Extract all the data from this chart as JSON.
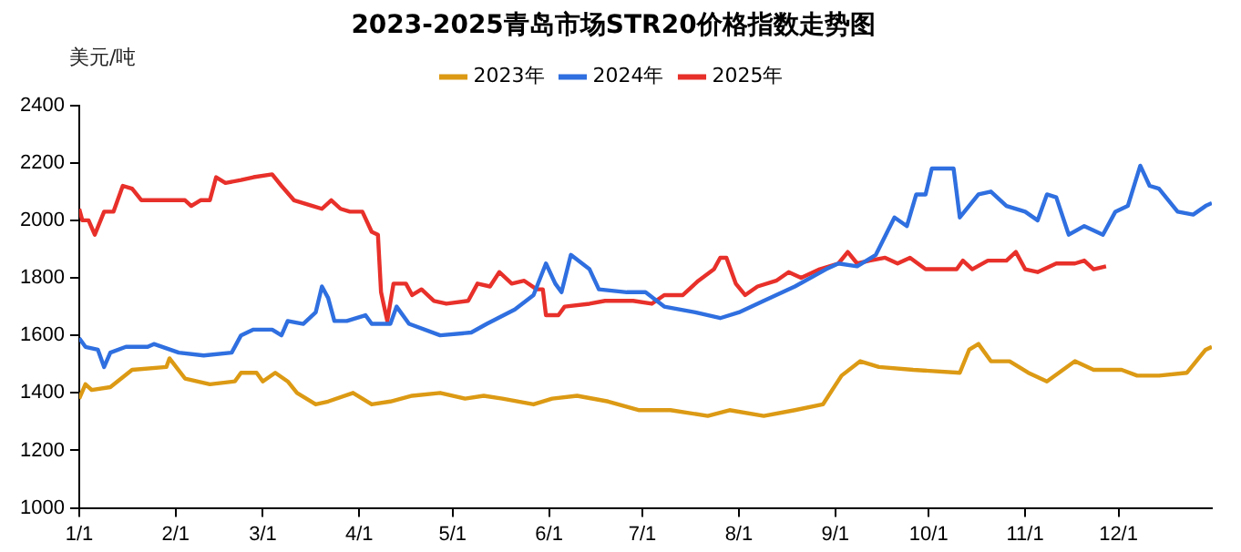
{
  "chart_data": {
    "type": "line",
    "title": "2023-2025青岛市场STR20价格指数走势图",
    "ylabel": "美元/吨",
    "xlim": [
      "--01-01",
      "--12-31"
    ],
    "xticks": [
      {
        "value": "--01-01",
        "label": "1/1"
      },
      {
        "value": "--02-01",
        "label": "2/1"
      },
      {
        "value": "--03-01",
        "label": "3/1"
      },
      {
        "value": "--04-01",
        "label": "4/1"
      },
      {
        "value": "--05-01",
        "label": "5/1"
      },
      {
        "value": "--06-01",
        "label": "6/1"
      },
      {
        "value": "--07-01",
        "label": "7/1"
      },
      {
        "value": "--08-01",
        "label": "8/1"
      },
      {
        "value": "--09-01",
        "label": "9/1"
      },
      {
        "value": "--10-01",
        "label": "10/1"
      },
      {
        "value": "--11-01",
        "label": "11/1"
      },
      {
        "value": "--12-01",
        "label": "12/1"
      }
    ],
    "ylim": [
      1000,
      2400
    ],
    "yticks": [
      1000,
      1200,
      1400,
      1600,
      1800,
      2000,
      2200,
      2400
    ],
    "grid": false,
    "legend": "top",
    "marker": "none",
    "line_style": "solid",
    "series": [
      {
        "name": "2023年",
        "color": "#dc9a14",
        "x": [
          "--01-01",
          "--01-03",
          "--01-05",
          "--01-11",
          "--01-18",
          "--01-29",
          "--01-30",
          "--02-04",
          "--02-12",
          "--02-20",
          "--02-22",
          "--02-27",
          "--03-01",
          "--03-05",
          "--03-09",
          "--03-12",
          "--03-18",
          "--03-22",
          "--03-30",
          "--04-05",
          "--04-11",
          "--04-18",
          "--04-27",
          "--05-05",
          "--05-11",
          "--05-17",
          "--05-27",
          "--06-02",
          "--06-10",
          "--06-20",
          "--06-30",
          "--07-10",
          "--07-22",
          "--07-29",
          "--08-09",
          "--08-19",
          "--08-28",
          "--08-31",
          "--09-03",
          "--09-09",
          "--09-15",
          "--09-26",
          "--10-11",
          "--10-14",
          "--10-17",
          "--10-21",
          "--10-27",
          "--11-02",
          "--11-08",
          "--11-17",
          "--11-23",
          "--12-02",
          "--12-07",
          "--12-14",
          "--12-23",
          "--12-29",
          "--12-31"
        ],
        "values": [
          1380,
          1430,
          1410,
          1420,
          1480,
          1490,
          1520,
          1450,
          1430,
          1440,
          1470,
          1470,
          1440,
          1470,
          1440,
          1400,
          1360,
          1370,
          1400,
          1360,
          1370,
          1390,
          1400,
          1380,
          1390,
          1380,
          1360,
          1380,
          1390,
          1370,
          1340,
          1340,
          1320,
          1340,
          1320,
          1340,
          1360,
          1410,
          1460,
          1510,
          1490,
          1480,
          1470,
          1550,
          1570,
          1510,
          1510,
          1470,
          1440,
          1510,
          1480,
          1480,
          1460,
          1460,
          1470,
          1550,
          1560
        ]
      },
      {
        "name": "2024年",
        "color": "#2f6fe0",
        "x": [
          "--01-01",
          "--01-03",
          "--01-07",
          "--01-09",
          "--01-11",
          "--01-16",
          "--01-23",
          "--01-25",
          "--02-02",
          "--02-10",
          "--02-19",
          "--02-22",
          "--02-26",
          "--03-04",
          "--03-07",
          "--03-09",
          "--03-14",
          "--03-18",
          "--03-20",
          "--03-22",
          "--03-24",
          "--03-28",
          "--04-03",
          "--04-05",
          "--04-11",
          "--04-13",
          "--04-17",
          "--04-27",
          "--05-07",
          "--05-12",
          "--05-21",
          "--05-27",
          "--05-31",
          "--06-03",
          "--06-05",
          "--06-08",
          "--06-14",
          "--06-17",
          "--06-26",
          "--07-02",
          "--07-08",
          "--07-18",
          "--07-26",
          "--08-01",
          "--08-09",
          "--08-19",
          "--08-29",
          "--09-02",
          "--09-08",
          "--09-14",
          "--09-20",
          "--09-24",
          "--09-27",
          "--09-30",
          "--10-02",
          "--10-09",
          "--10-11",
          "--10-17",
          "--10-21",
          "--10-26",
          "--11-01",
          "--11-05",
          "--11-08",
          "--11-11",
          "--11-15",
          "--11-20",
          "--11-26",
          "--11-30",
          "--12-04",
          "--12-08",
          "--12-11",
          "--12-14",
          "--12-20",
          "--12-25",
          "--12-29",
          "--12-31"
        ],
        "values": [
          1590,
          1560,
          1550,
          1490,
          1540,
          1560,
          1560,
          1570,
          1540,
          1530,
          1540,
          1600,
          1620,
          1620,
          1600,
          1650,
          1640,
          1680,
          1770,
          1730,
          1650,
          1650,
          1670,
          1640,
          1640,
          1700,
          1640,
          1600,
          1610,
          1640,
          1690,
          1740,
          1850,
          1780,
          1750,
          1880,
          1830,
          1760,
          1750,
          1750,
          1700,
          1680,
          1660,
          1680,
          1720,
          1770,
          1830,
          1850,
          1840,
          1880,
          2010,
          1980,
          2090,
          2090,
          2180,
          2180,
          2010,
          2090,
          2100,
          2050,
          2030,
          2000,
          2090,
          2080,
          1950,
          1980,
          1950,
          2030,
          2050,
          2190,
          2120,
          2110,
          2030,
          2020,
          2050,
          2060
        ]
      },
      {
        "name": "2025年",
        "color": "#e8302a",
        "x": [
          "--01-01",
          "--01-02",
          "--01-04",
          "--01-06",
          "--01-09",
          "--01-12",
          "--01-15",
          "--01-18",
          "--01-21",
          "--01-29",
          "--02-04",
          "--02-06",
          "--02-09",
          "--02-12",
          "--02-14",
          "--02-17",
          "--02-22",
          "--02-26",
          "--03-04",
          "--03-07",
          "--03-11",
          "--03-17",
          "--03-20",
          "--03-23",
          "--03-26",
          "--03-29",
          "--04-02",
          "--04-05",
          "--04-07",
          "--04-08",
          "--04-10",
          "--04-12",
          "--04-16",
          "--04-18",
          "--04-21",
          "--04-25",
          "--04-29",
          "--05-06",
          "--05-09",
          "--05-13",
          "--05-16",
          "--05-20",
          "--05-24",
          "--05-28",
          "--05-30",
          "--05-31",
          "--06-04",
          "--06-06",
          "--06-14",
          "--06-19",
          "--06-22",
          "--06-28",
          "--07-04",
          "--07-08",
          "--07-14",
          "--07-19",
          "--07-24",
          "--07-26",
          "--07-28",
          "--07-31",
          "--08-03",
          "--08-07",
          "--08-13",
          "--08-17",
          "--08-21",
          "--08-27",
          "--09-02",
          "--09-05",
          "--09-08",
          "--09-12",
          "--09-17",
          "--09-21",
          "--09-25",
          "--09-30",
          "--10-10",
          "--10-12",
          "--10-15",
          "--10-20",
          "--10-26",
          "--10-29",
          "--11-01",
          "--11-05",
          "--11-11",
          "--11-17",
          "--11-20",
          "--11-23",
          "--11-27"
        ],
        "values": [
          2040,
          2000,
          2000,
          1950,
          2030,
          2030,
          2120,
          2110,
          2070,
          2070,
          2070,
          2050,
          2070,
          2070,
          2150,
          2130,
          2140,
          2150,
          2160,
          2120,
          2070,
          2050,
          2040,
          2070,
          2040,
          2030,
          2030,
          1960,
          1950,
          1750,
          1650,
          1780,
          1780,
          1740,
          1760,
          1720,
          1710,
          1720,
          1780,
          1770,
          1820,
          1780,
          1790,
          1760,
          1760,
          1670,
          1670,
          1700,
          1710,
          1720,
          1720,
          1720,
          1710,
          1740,
          1740,
          1790,
          1830,
          1870,
          1870,
          1780,
          1740,
          1770,
          1790,
          1820,
          1800,
          1830,
          1850,
          1890,
          1850,
          1860,
          1870,
          1850,
          1870,
          1830,
          1830,
          1860,
          1830,
          1860,
          1860,
          1890,
          1830,
          1820,
          1850,
          1850,
          1860,
          1830,
          1840
        ]
      }
    ]
  }
}
